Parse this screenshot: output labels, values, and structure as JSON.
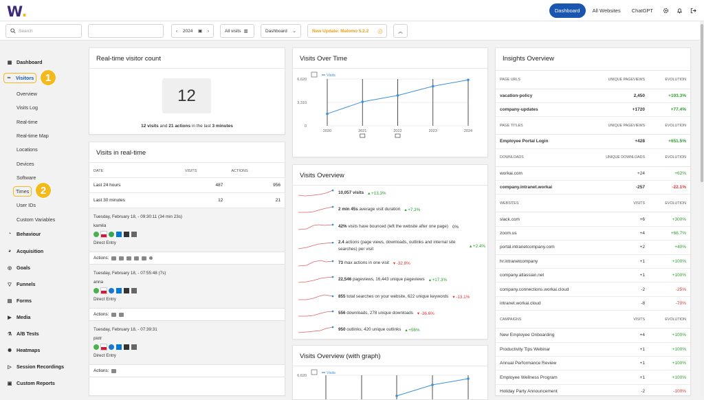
{
  "app": {
    "logo": "W",
    "logo_dot": "."
  },
  "topnav": {
    "dashboard": "Dashboard",
    "all_websites": "All Websites",
    "chatgpt": "ChatGPT"
  },
  "toolbar": {
    "search_placeholder": "Search",
    "year": "2024",
    "segment": "All visits",
    "dashboard": "Dashboard",
    "update": "New Update: Matomo 5.2.2"
  },
  "sidebar": {
    "dashboard": "Dashboard",
    "visitors": "Visitors",
    "visitor_items": [
      "Overview",
      "Visits Log",
      "Real-time",
      "Real-time Map",
      "Locations",
      "Devices",
      "Software",
      "Times",
      "User IDs",
      "Custom Variables"
    ],
    "sections": [
      "Behaviour",
      "Acquisition",
      "Goals",
      "Funnels",
      "Forms",
      "Media",
      "A/B Tests",
      "Heatmaps",
      "Session Recordings",
      "Custom Reports"
    ],
    "badge1": "1",
    "badge2": "2"
  },
  "realtime_count": {
    "title": "Real-time visitor count",
    "count": "12",
    "visits": "12 visits",
    "and": " and ",
    "actions": "21 actions",
    "in_last": " in the last ",
    "minutes": "3 minutes"
  },
  "visits_realtime": {
    "title": "Visits in real-time",
    "headers": [
      "DATE",
      "VISITS",
      "ACTIONS"
    ],
    "rows": [
      {
        "label": "Last 24 hours",
        "visits": "487",
        "actions": "956"
      },
      {
        "label": "Last 30 minutes",
        "visits": "12",
        "actions": "21"
      }
    ],
    "visits": [
      {
        "time": "Tuesday, February 18, - 09:30:11 (34 min 23s)",
        "user": "kamila",
        "source": "Direct Entry",
        "actions_label": "Actions:"
      },
      {
        "time": "Tuesday, February 18, - 07:55:48 (7s)",
        "user": "anna",
        "source": "Direct Entry",
        "actions_label": "Actions:"
      },
      {
        "time": "Tuesday, February 18, - 07:39:31",
        "user": "piotr",
        "source": "Direct Entry",
        "actions_label": "Actions:"
      }
    ]
  },
  "visits_over_time": {
    "title": "Visits Over Time",
    "legend": "Visits"
  },
  "chart_data": [
    {
      "type": "line",
      "title": "Visits Over Time",
      "x": [
        "2020",
        "2021",
        "2022",
        "2023",
        "2024"
      ],
      "series": [
        {
          "name": "Visits",
          "values": [
            1700,
            3400,
            4300,
            5600,
            6500
          ]
        }
      ],
      "yticks": [
        "0",
        "3,310",
        "6,620"
      ],
      "ylim": [
        0,
        6620
      ],
      "color": "#3b8fd9"
    }
  ],
  "visits_overview": {
    "title": "Visits Overview",
    "rows": [
      {
        "main": "10,057 visits",
        "rest": "",
        "change": "+13.3%",
        "dir": "up"
      },
      {
        "main": "2 min 45s",
        "rest": " average visit duration",
        "change": "+7.3%",
        "dir": "up"
      },
      {
        "main": "42%",
        "rest": " visits have bounced (left the website after one page)",
        "change": "0%",
        "dir": "flat"
      },
      {
        "main": "2.4",
        "rest": " actions (page views, downloads, outlinks and internal site searches) per visit",
        "change": "+2.4%",
        "dir": "up"
      },
      {
        "main": "73",
        "rest": " max actions in one visit",
        "change": "-32.8%",
        "dir": "down"
      },
      {
        "main": "22,546",
        "rest": " pageviews, 16,443 unique pageviews",
        "change": "+17.3%",
        "dir": "up"
      },
      {
        "main": "855",
        "rest": " total searches on your website, 622 unique keywords",
        "change": "-13.1%",
        "dir": "down"
      },
      {
        "main": "556",
        "rest": " downloads, 278 unique downloads",
        "change": "-36.6%",
        "dir": "down"
      },
      {
        "main": "950",
        "rest": " outlinks, 420 unique outlinks",
        "change": "+56%",
        "dir": "up"
      }
    ]
  },
  "visits_overview_graph": {
    "title": "Visits Overview (with graph)",
    "ytick": "6,620",
    "legend": "Visits"
  },
  "insights": {
    "title": "Insights Overview",
    "sections": [
      {
        "h": [
          "PAGE URLS",
          "UNIQUE PAGEVIEWS",
          "EVOLUTION"
        ],
        "rows": [
          [
            "vacation-policy",
            "2,450",
            "+103.3%",
            "b"
          ],
          [
            "company-updates",
            "+1720",
            "+77.4%",
            "b"
          ]
        ]
      },
      {
        "h": [
          "PAGE TITLES",
          "UNIQUE PAGEVIEWS",
          "EVOLUTION"
        ],
        "rows": [
          [
            "Employee Portal Login",
            "+428",
            "+651.5%",
            "b"
          ]
        ]
      },
      {
        "h": [
          "DOWNLOADS",
          "UNIQUE DOWNLOADS",
          "EVOLUTION"
        ],
        "rows": [
          [
            "workai.com",
            "+24",
            "+62%",
            ""
          ],
          [
            "company.intranet.workai",
            "-257",
            "-22.1%",
            "b"
          ]
        ]
      },
      {
        "h": [
          "WEBSITES",
          "VISITS",
          "EVOLUTION"
        ],
        "rows": [
          [
            "slack.com",
            "+6",
            "+300%",
            ""
          ],
          [
            "zoom.us",
            "+4",
            "+66.7%",
            ""
          ],
          [
            "portal.intranetcompany.com",
            "+2",
            "+40%",
            ""
          ],
          [
            "hr.intranetcompany",
            "+1",
            "+100%",
            ""
          ],
          [
            "company.atlassian.net",
            "+1",
            "+100%",
            ""
          ],
          [
            "company.connections.workai.cloud",
            "-2",
            "-25%",
            ""
          ],
          [
            "intranet.workai.cloud",
            "-8",
            "-70%",
            ""
          ]
        ]
      },
      {
        "h": [
          "CAMPAIGNS",
          "VISITS",
          "EVOLUTION"
        ],
        "rows": [
          [
            "New Employee Onboarding",
            "+4",
            "+100%",
            ""
          ],
          [
            "Productivity Tips Webinar",
            "+1",
            "+100%",
            ""
          ],
          [
            "Annual Performance Review",
            "+1",
            "+100%",
            ""
          ],
          [
            "Employee Wellness Program",
            "+1",
            "+100%",
            ""
          ],
          [
            "Holiday Party Announcement",
            "-2",
            "-100%",
            ""
          ]
        ]
      }
    ]
  },
  "colors": {
    "accent": "#1a55b0",
    "highlight": "#f3b91d",
    "positive": "#2a9d2a",
    "negative": "#d33333",
    "line": "#3b8fd9"
  }
}
